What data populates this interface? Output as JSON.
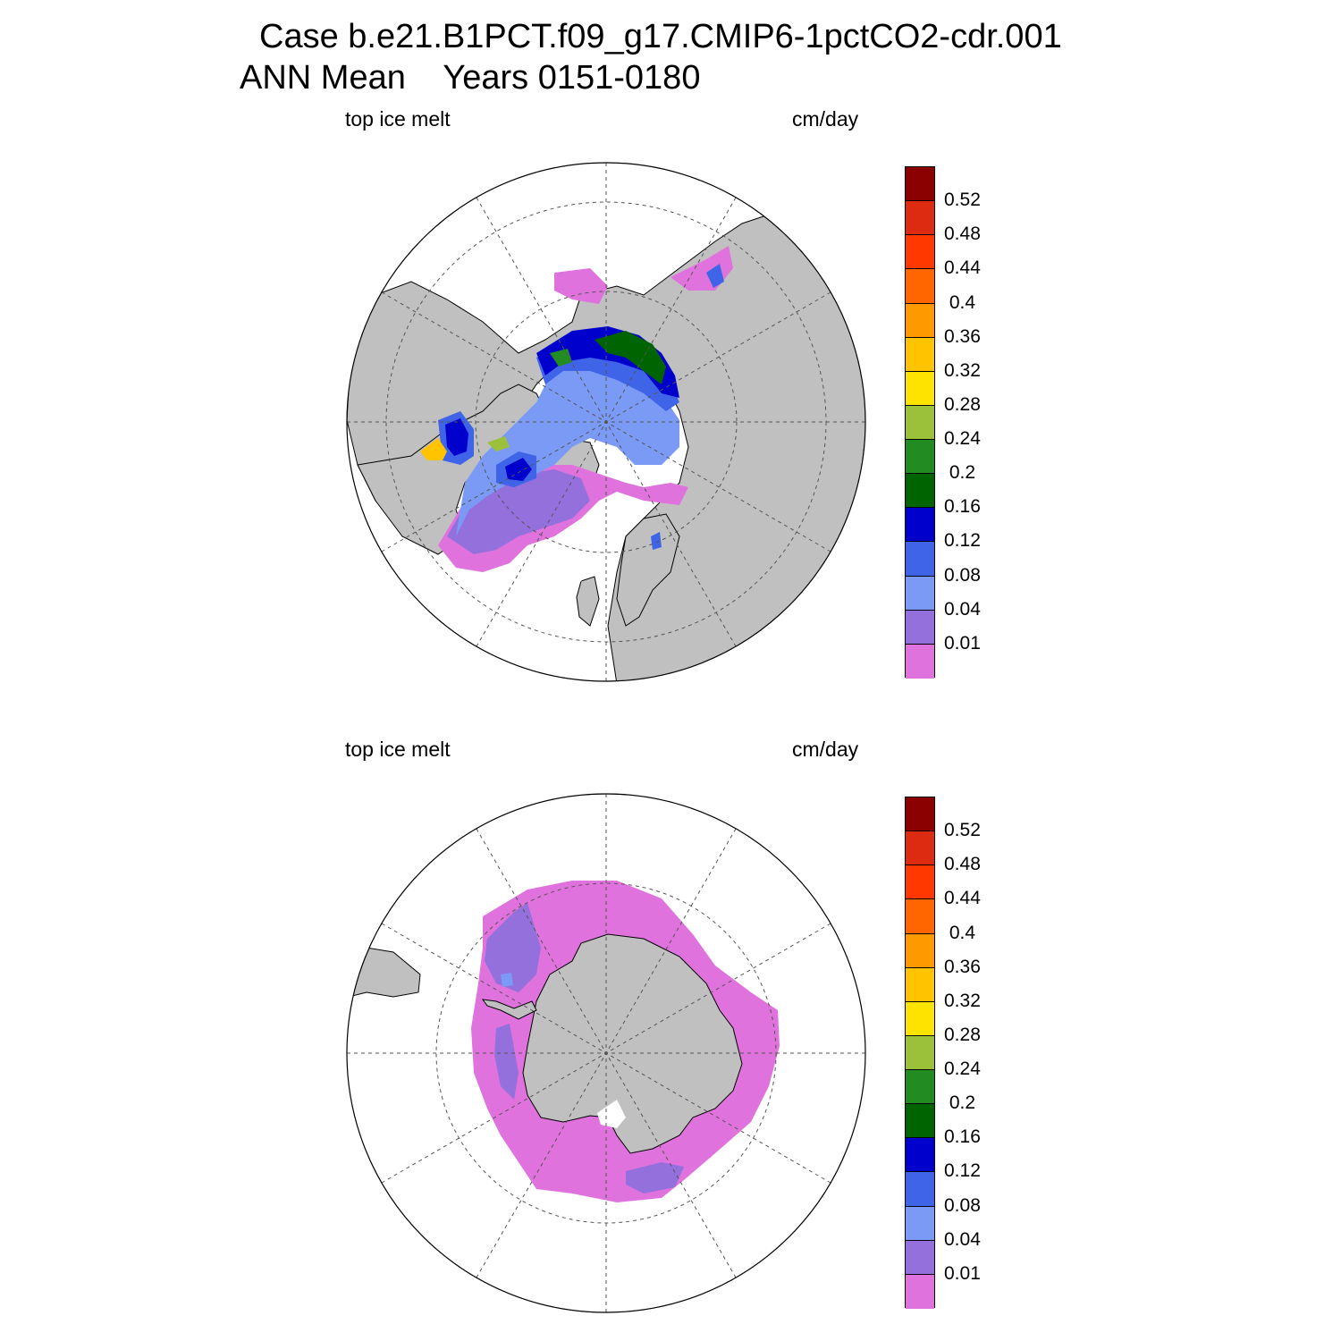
{
  "title": {
    "line1": "Case b.e21.B1PCT.f09_g17.CMIP6-1pctCO2-cdr.001",
    "line2": "ANN Mean    Years 0151-0180"
  },
  "panels": [
    {
      "left_label": "top ice melt",
      "right_label": "cm/day",
      "hemisphere": "north"
    },
    {
      "left_label": "top ice melt",
      "right_label": "cm/day",
      "hemisphere": "south"
    }
  ],
  "colorbar": {
    "levels": [
      "0.52",
      "0.48",
      "0.44",
      "0.4",
      "0.36",
      "0.32",
      "0.28",
      "0.24",
      "0.2",
      "0.16",
      "0.12",
      "0.08",
      "0.04",
      "0.01"
    ],
    "colors": [
      "#8b0000",
      "#dd2b12",
      "#ff3800",
      "#ff6600",
      "#ff9900",
      "#ffc300",
      "#ffe300",
      "#9ac139",
      "#228b22",
      "#006400",
      "#0000cd",
      "#3f64e8",
      "#7a9af5",
      "#9370db",
      "#e072dd"
    ]
  },
  "map_colors": {
    "land": "#c0c0c0",
    "ocean": "#ffffff"
  }
}
